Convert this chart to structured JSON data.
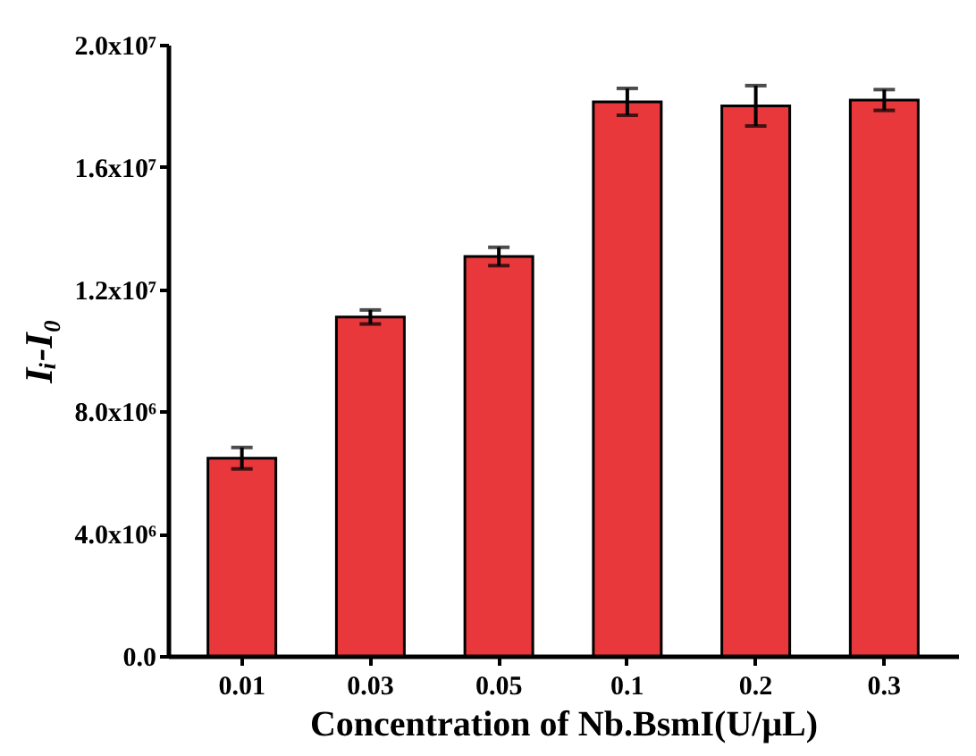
{
  "chart_data": {
    "type": "bar",
    "xlabel": "Concentration of Nb.BsmI(U/μL)",
    "ylabel": "Iᵢ-I₀",
    "categories": [
      "0.01",
      "0.03",
      "0.05",
      "0.1",
      "0.2",
      "0.3"
    ],
    "values": [
      6470000,
      11090000,
      13070000,
      18130000,
      18000000,
      18190000
    ],
    "errors": [
      350000,
      230000,
      300000,
      440000,
      660000,
      340000
    ],
    "color": "#e8383b",
    "ylim": [
      0,
      20000000
    ],
    "yticks": [
      {
        "value": 0,
        "label": "0.0"
      },
      {
        "value": 4000000,
        "label": "4.0x10⁶"
      },
      {
        "value": 8000000,
        "label": "8.0x10⁶"
      },
      {
        "value": 12000000,
        "label": "1.2x10⁷"
      },
      {
        "value": 16000000,
        "label": "1.6x10⁷"
      },
      {
        "value": 20000000,
        "label": "2.0x10⁷"
      }
    ],
    "grid": false
  }
}
